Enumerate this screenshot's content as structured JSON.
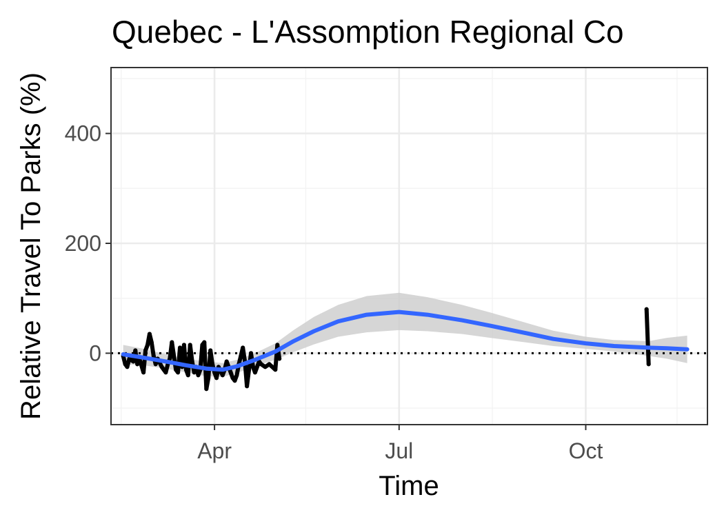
{
  "chart_data": {
    "type": "line",
    "title": "Quebec - L'Assomption Regional Co",
    "xlabel": "Time",
    "ylabel": "Relative Travel To Parks (%)",
    "x_range": [
      "2020-02-10",
      "2020-11-30"
    ],
    "ylim": [
      -130,
      520
    ],
    "x_ticks": [
      {
        "date": "2020-04-01",
        "label": "Apr"
      },
      {
        "date": "2020-07-01",
        "label": "Jul"
      },
      {
        "date": "2020-10-01",
        "label": "Oct"
      }
    ],
    "y_ticks": [
      {
        "value": 0,
        "label": "0"
      },
      {
        "value": 200,
        "label": "200"
      },
      {
        "value": 400,
        "label": "400"
      }
    ],
    "grid": true,
    "reference_line": {
      "y": 0,
      "style": "dotted"
    },
    "series": [
      {
        "kind": "observed",
        "color": "#000000",
        "points": [
          [
            "2020-02-16",
            -5
          ],
          [
            "2020-02-17",
            -20
          ],
          [
            "2020-02-18",
            -25
          ],
          [
            "2020-02-19",
            -10
          ],
          [
            "2020-02-21",
            -15
          ],
          [
            "2020-02-22",
            5
          ],
          [
            "2020-02-23",
            -20
          ],
          [
            "2020-02-24",
            -10
          ],
          [
            "2020-02-26",
            -35
          ],
          [
            "2020-02-27",
            5
          ],
          [
            "2020-02-28",
            15
          ],
          [
            "2020-02-29",
            35
          ],
          [
            "2020-03-01",
            20
          ],
          [
            "2020-03-02",
            -5
          ],
          [
            "2020-03-03",
            -20
          ],
          [
            "2020-03-04",
            -10
          ],
          [
            "2020-03-06",
            -25
          ],
          [
            "2020-03-07",
            -30
          ],
          [
            "2020-03-08",
            -35
          ],
          [
            "2020-03-09",
            -20
          ],
          [
            "2020-03-10",
            -10
          ],
          [
            "2020-03-11",
            20
          ],
          [
            "2020-03-12",
            -5
          ],
          [
            "2020-03-13",
            -30
          ],
          [
            "2020-03-14",
            -35
          ],
          [
            "2020-03-15",
            10
          ],
          [
            "2020-03-16",
            -25
          ],
          [
            "2020-03-17",
            15
          ],
          [
            "2020-03-18",
            -30
          ],
          [
            "2020-03-19",
            -40
          ],
          [
            "2020-03-20",
            15
          ],
          [
            "2020-03-21",
            -15
          ],
          [
            "2020-03-22",
            -35
          ],
          [
            "2020-03-23",
            -25
          ],
          [
            "2020-03-24",
            -40
          ],
          [
            "2020-03-25",
            -30
          ],
          [
            "2020-03-26",
            15
          ],
          [
            "2020-03-27",
            20
          ],
          [
            "2020-03-28",
            -65
          ],
          [
            "2020-03-29",
            -45
          ],
          [
            "2020-03-30",
            5
          ],
          [
            "2020-03-31",
            -20
          ],
          [
            "2020-04-01",
            -35
          ],
          [
            "2020-04-02",
            -45
          ],
          [
            "2020-04-03",
            -25
          ],
          [
            "2020-04-05",
            -40
          ],
          [
            "2020-04-06",
            -30
          ],
          [
            "2020-04-07",
            -15
          ],
          [
            "2020-04-08",
            -25
          ],
          [
            "2020-04-09",
            -35
          ],
          [
            "2020-04-10",
            -45
          ],
          [
            "2020-04-11",
            -50
          ],
          [
            "2020-04-12",
            -40
          ],
          [
            "2020-04-13",
            -20
          ],
          [
            "2020-04-14",
            -5
          ],
          [
            "2020-04-15",
            10
          ],
          [
            "2020-04-16",
            -15
          ],
          [
            "2020-04-17",
            -60
          ],
          [
            "2020-04-18",
            -30
          ],
          [
            "2020-04-19",
            0
          ],
          [
            "2020-04-20",
            -25
          ],
          [
            "2020-04-21",
            -35
          ],
          [
            "2020-04-23",
            -15
          ],
          [
            "2020-04-24",
            -20
          ],
          [
            "2020-04-26",
            -25
          ],
          [
            "2020-04-28",
            -20
          ],
          [
            "2020-05-01",
            -30
          ],
          [
            "2020-05-02",
            15
          ],
          [
            "2020-05-03",
            -10
          ],
          [
            "2020-10-31",
            80
          ],
          [
            "2020-11-01",
            -20
          ]
        ]
      },
      {
        "kind": "smoothed",
        "color": "#3366FF",
        "band_color": "#cccccc",
        "points": [
          [
            "2020-02-16",
            -2,
            15,
            -20
          ],
          [
            "2020-02-26",
            -8,
            8,
            -22
          ],
          [
            "2020-03-08",
            -15,
            -2,
            -28
          ],
          [
            "2020-03-18",
            -22,
            -10,
            -35
          ],
          [
            "2020-03-28",
            -28,
            -15,
            -42
          ],
          [
            "2020-04-05",
            -30,
            -18,
            -43
          ],
          [
            "2020-04-12",
            -24,
            -12,
            -36
          ],
          [
            "2020-04-21",
            -12,
            0,
            -24
          ],
          [
            "2020-05-01",
            3,
            18,
            -12
          ],
          [
            "2020-05-10",
            22,
            42,
            2
          ],
          [
            "2020-05-20",
            40,
            66,
            16
          ],
          [
            "2020-06-01",
            58,
            88,
            30
          ],
          [
            "2020-06-15",
            70,
            104,
            38
          ],
          [
            "2020-07-01",
            75,
            110,
            42
          ],
          [
            "2020-07-15",
            70,
            102,
            40
          ],
          [
            "2020-08-01",
            60,
            88,
            35
          ],
          [
            "2020-08-15",
            50,
            74,
            28
          ],
          [
            "2020-09-01",
            37,
            56,
            20
          ],
          [
            "2020-09-15",
            26,
            41,
            13
          ],
          [
            "2020-10-01",
            18,
            30,
            8
          ],
          [
            "2020-10-15",
            13,
            24,
            3
          ],
          [
            "2020-11-01",
            10,
            22,
            -5
          ],
          [
            "2020-11-10",
            9,
            28,
            -10
          ],
          [
            "2020-11-20",
            7,
            32,
            -18
          ]
        ]
      }
    ]
  }
}
